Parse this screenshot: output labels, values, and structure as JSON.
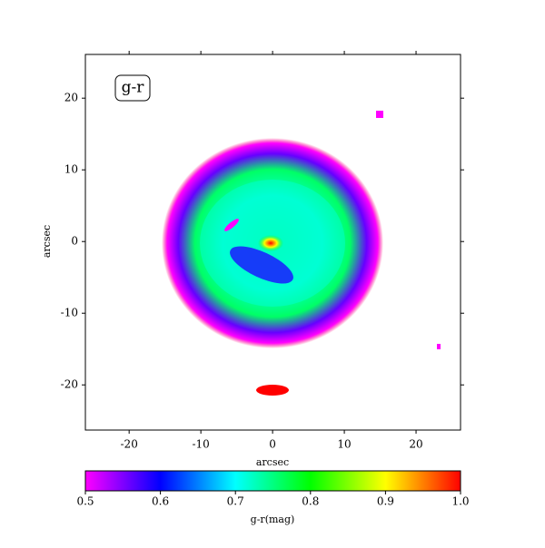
{
  "chart_data": {
    "type": "image",
    "annotation": "g-r",
    "xlabel": "arcsec",
    "ylabel": "arcsec",
    "xlim": [
      -26.1,
      26.2
    ],
    "ylim": [
      -26.3,
      26.1
    ],
    "xticks": [
      -20,
      -10,
      0,
      10,
      20
    ],
    "yticks": [
      -20,
      -10,
      0,
      10,
      20
    ],
    "colorbar_label": "g-r(mag)",
    "clim": [
      0.5,
      1
    ],
    "cticks": [
      0.5,
      0.6,
      0.7,
      0.8,
      0.9,
      {
        "value": 1,
        "label": "1.0"
      }
    ],
    "colormap": [
      "#ff00ff",
      "#0000ff",
      "#00ffff",
      "#00ff00",
      "#ffff00",
      "#ff0000"
    ]
  }
}
